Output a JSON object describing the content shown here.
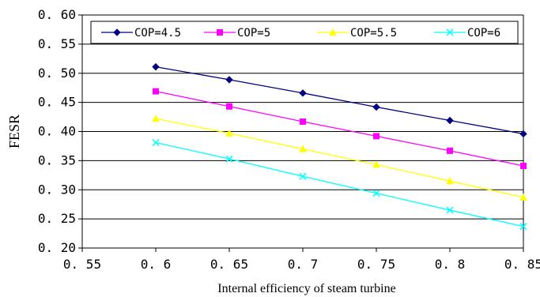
{
  "chart_data": {
    "type": "line",
    "title": "",
    "xlabel": "Internal efficiency of steam turbine",
    "ylabel": "FESR",
    "xlim": [
      0.55,
      0.85
    ],
    "ylim": [
      0.2,
      0.6
    ],
    "x_ticks": [
      "0.55",
      "0.6",
      "0.65",
      "0.7",
      "0.75",
      "0.8",
      "0.85"
    ],
    "y_ticks": [
      "0.20",
      "0.25",
      "0.30",
      "0.35",
      "0.40",
      "0.45",
      "0.50",
      "0.55",
      "0.60"
    ],
    "grid": "horizontal",
    "legend_position": "top",
    "x": [
      0.6,
      0.65,
      0.7,
      0.75,
      0.8,
      0.85
    ],
    "series": [
      {
        "name": "COP=4.5",
        "color": "#000080",
        "marker": "diamond",
        "values": [
          0.511,
          0.489,
          0.466,
          0.442,
          0.419,
          0.396
        ]
      },
      {
        "name": "COP=5",
        "color": "#FF00FF",
        "marker": "square",
        "values": [
          0.469,
          0.443,
          0.417,
          0.392,
          0.367,
          0.341
        ]
      },
      {
        "name": "COP=5.5",
        "color": "#FFFF00",
        "marker": "triangle",
        "values": [
          0.422,
          0.397,
          0.37,
          0.343,
          0.315,
          0.287
        ]
      },
      {
        "name": "COP=6",
        "color": "#00FFFF",
        "marker": "x",
        "values": [
          0.381,
          0.353,
          0.323,
          0.294,
          0.265,
          0.237
        ]
      }
    ]
  }
}
